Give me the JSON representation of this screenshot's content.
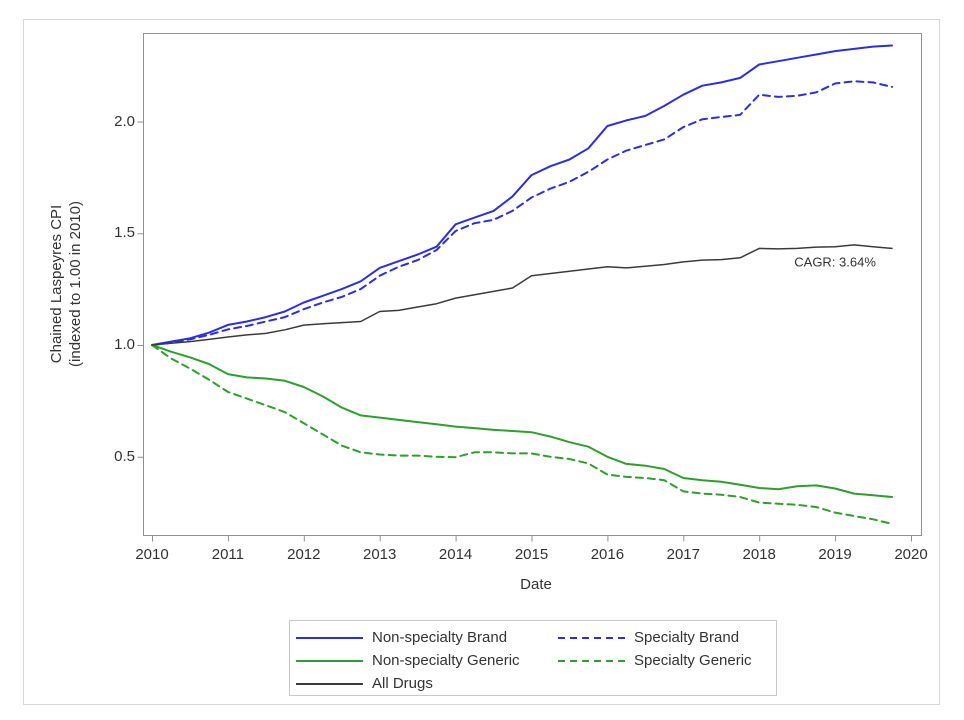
{
  "figure": {
    "y_axis_label_line1": "Chained Laspeyres CPI",
    "y_axis_label_line2": "(indexed to 1.00 in 2010)"
  },
  "colors": {
    "frame": "#8F8F8F",
    "text": "#333333",
    "outer_border": "#D6D6D6",
    "legend_border": "#C9C9C9",
    "brand_blue": "#2E2EDB",
    "generic_green": "#2F9E2F",
    "all_drugs_black": "#3B3B3B"
  },
  "chart_data": {
    "type": "line",
    "title": "",
    "xlabel": "Date",
    "ylabel": "Chained Laspeyres CPI (indexed to 1.00 in 2010)",
    "xlim": [
      2009.89,
      2020.14
    ],
    "ylim": [
      0.15,
      2.39
    ],
    "grid": false,
    "legend_position": "bottom",
    "x_ticks": [
      2010,
      2011,
      2012,
      2013,
      2014,
      2015,
      2016,
      2017,
      2018,
      2019,
      2020
    ],
    "x_tick_labels": [
      "2010",
      "2011",
      "2012",
      "2013",
      "2014",
      "2015",
      "2016",
      "2017",
      "2018",
      "2019",
      "2020"
    ],
    "y_ticks": [
      0.5,
      1.0,
      1.5,
      2.0
    ],
    "y_tick_labels": [
      "0.5",
      "1.0",
      "1.5",
      "2.0"
    ],
    "annotation": {
      "text": "CAGR: 3.64%",
      "x": 2019.0,
      "y": 1.37
    },
    "x": [
      2010.0,
      2010.25,
      2010.5,
      2010.75,
      2011.0,
      2011.25,
      2011.5,
      2011.75,
      2012.0,
      2012.25,
      2012.5,
      2012.75,
      2013.0,
      2013.25,
      2013.5,
      2013.75,
      2014.0,
      2014.25,
      2014.5,
      2014.75,
      2015.0,
      2015.25,
      2015.5,
      2015.75,
      2016.0,
      2016.25,
      2016.5,
      2016.75,
      2017.0,
      2017.25,
      2017.5,
      2017.75,
      2018.0,
      2018.25,
      2018.5,
      2018.75,
      2019.0,
      2019.25,
      2019.5,
      2019.75
    ],
    "series": [
      {
        "name": "Non-specialty Brand",
        "color": "#2E2EDB",
        "dash": "solid",
        "line_width": 2,
        "values": [
          1.0,
          1.015,
          1.03,
          1.055,
          1.09,
          1.105,
          1.125,
          1.15,
          1.19,
          1.22,
          1.25,
          1.285,
          1.345,
          1.375,
          1.405,
          1.44,
          1.54,
          1.57,
          1.6,
          1.665,
          1.76,
          1.8,
          1.83,
          1.88,
          1.98,
          2.005,
          2.025,
          2.07,
          2.12,
          2.16,
          2.175,
          2.195,
          2.255,
          2.27,
          2.285,
          2.3,
          2.315,
          2.325,
          2.335,
          2.34
        ]
      },
      {
        "name": "Specialty Brand",
        "color": "#2E2EDB",
        "dash": "dashed",
        "line_width": 2,
        "values": [
          1.0,
          1.01,
          1.025,
          1.045,
          1.07,
          1.085,
          1.105,
          1.125,
          1.16,
          1.19,
          1.215,
          1.25,
          1.31,
          1.35,
          1.38,
          1.425,
          1.51,
          1.545,
          1.56,
          1.6,
          1.66,
          1.7,
          1.73,
          1.775,
          1.83,
          1.87,
          1.895,
          1.92,
          1.975,
          2.01,
          2.02,
          2.03,
          2.12,
          2.11,
          2.115,
          2.13,
          2.17,
          2.18,
          2.175,
          2.155
        ]
      },
      {
        "name": "Non-specialty Generic",
        "color": "#2F9E2F",
        "dash": "solid",
        "line_width": 2,
        "values": [
          1.0,
          0.97,
          0.945,
          0.915,
          0.87,
          0.855,
          0.85,
          0.84,
          0.812,
          0.77,
          0.72,
          0.685,
          0.675,
          0.665,
          0.655,
          0.645,
          0.635,
          0.628,
          0.62,
          0.615,
          0.61,
          0.59,
          0.565,
          0.545,
          0.5,
          0.468,
          0.46,
          0.445,
          0.405,
          0.395,
          0.388,
          0.375,
          0.36,
          0.355,
          0.368,
          0.372,
          0.358,
          0.335,
          0.328,
          0.32
        ]
      },
      {
        "name": "Specialty Generic",
        "color": "#2F9E2F",
        "dash": "dashed",
        "line_width": 2,
        "values": [
          1.0,
          0.94,
          0.895,
          0.845,
          0.79,
          0.76,
          0.73,
          0.7,
          0.65,
          0.6,
          0.55,
          0.52,
          0.51,
          0.505,
          0.505,
          0.5,
          0.498,
          0.52,
          0.52,
          0.515,
          0.515,
          0.5,
          0.49,
          0.47,
          0.42,
          0.41,
          0.405,
          0.395,
          0.345,
          0.335,
          0.33,
          0.32,
          0.295,
          0.29,
          0.285,
          0.275,
          0.25,
          0.235,
          0.22,
          0.2
        ]
      },
      {
        "name": "All Drugs",
        "color": "#3B3B3B",
        "dash": "solid",
        "line_width": 1.5,
        "values": [
          1.0,
          1.008,
          1.015,
          1.025,
          1.036,
          1.045,
          1.052,
          1.068,
          1.089,
          1.095,
          1.1,
          1.105,
          1.15,
          1.155,
          1.17,
          1.185,
          1.21,
          1.225,
          1.24,
          1.255,
          1.31,
          1.32,
          1.33,
          1.34,
          1.35,
          1.345,
          1.352,
          1.36,
          1.372,
          1.38,
          1.382,
          1.39,
          1.432,
          1.43,
          1.432,
          1.438,
          1.44,
          1.448,
          1.44,
          1.432
        ]
      }
    ]
  },
  "legend": {
    "items": [
      {
        "label": "Non-specialty Brand"
      },
      {
        "label": "Specialty Brand"
      },
      {
        "label": "Non-specialty Generic"
      },
      {
        "label": "Specialty Generic"
      },
      {
        "label": "All Drugs"
      }
    ]
  }
}
